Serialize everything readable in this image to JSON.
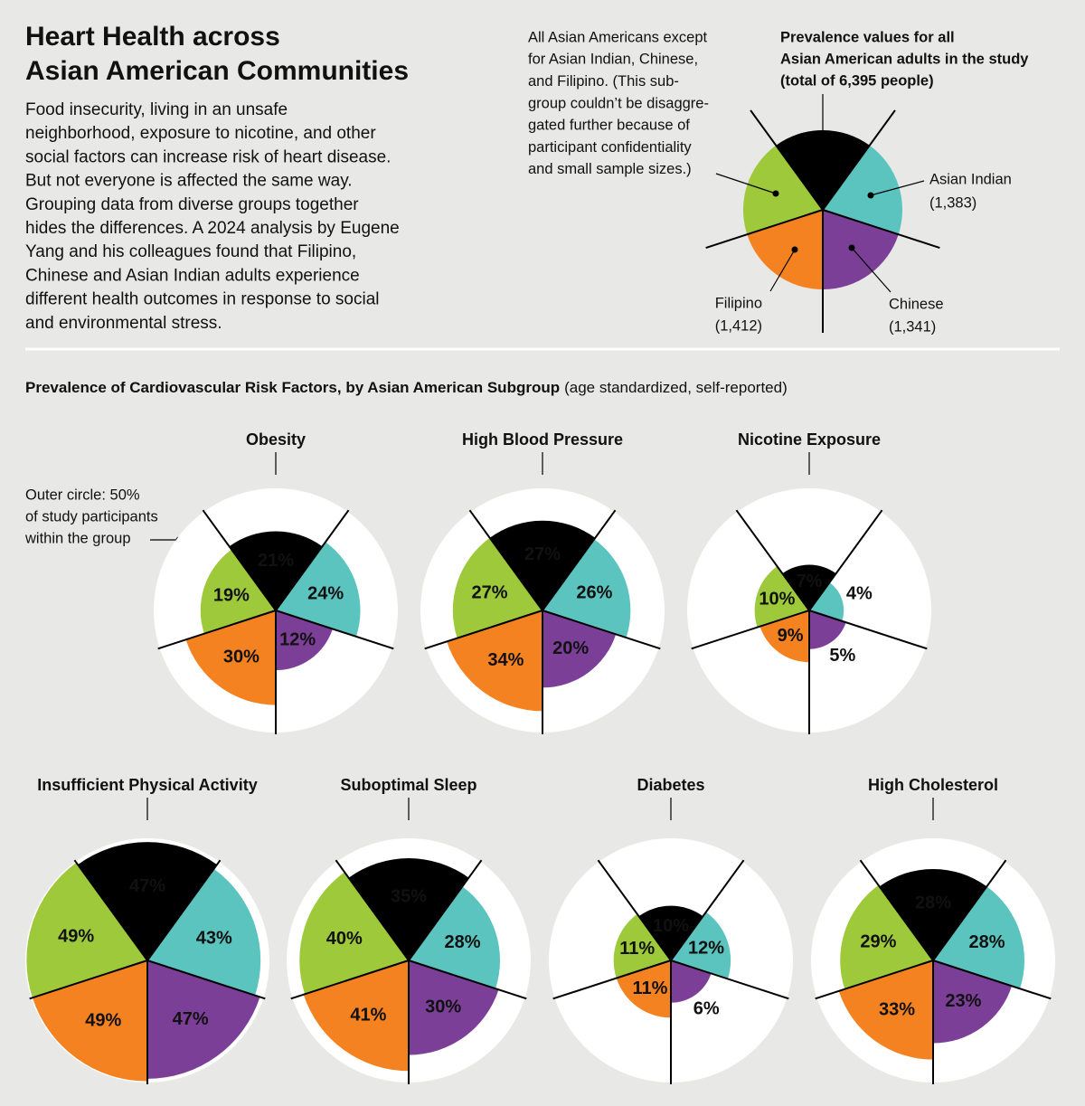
{
  "header": {
    "title": [
      "Heart Health across",
      "Asian American Communities"
    ],
    "body": [
      "Food insecurity, living in an unsafe",
      "neighborhood, exposure to nicotine, and other",
      "social factors can increase risk of heart disease.",
      "But not everyone is affected the same way.",
      "Grouping data from diverse groups together",
      "hides the differences. A 2024 analysis by Eugene",
      "Yang and his colleagues found that Filipino,",
      "Chinese and Asian Indian adults experience",
      "different health outcomes in response to social",
      "and environmental stress."
    ]
  },
  "key": {
    "segments": [
      {
        "color": "#000000",
        "label": [
          "Prevalence values for all",
          "Asian American adults in the study",
          "(total of 6,395 people)"
        ]
      },
      {
        "color": "#5bc4bf",
        "label": [
          "Asian Indian",
          "(1,383)"
        ]
      },
      {
        "color": "#7b3f98",
        "label": [
          "Chinese",
          "(1,341)"
        ]
      },
      {
        "color": "#f58220",
        "label": [
          "Filipino",
          "(1,412)"
        ]
      },
      {
        "color": "#9dc93b",
        "label": [
          "All Asian Americans except",
          "for Asian Indian, Chinese,",
          "and Filipino. (This sub-",
          "group couldn’t be disaggre-",
          "gated further because of",
          "participant confidentiality",
          "and small sample sizes.)"
        ]
      }
    ]
  },
  "section_title": {
    "main": "Prevalence of Cardiovascular Risk Factors, by Asian American Subgroup",
    "note": "(age standardized, self-reported)"
  },
  "outer_circle_note": [
    "Outer circle: 50%",
    "of study participants",
    "within the group"
  ],
  "chart_data": [
    {
      "type": "polar_area",
      "title": "Obesity",
      "rlim": [
        0,
        50
      ],
      "values": [
        21,
        24,
        12,
        30,
        19
      ],
      "value_labels": [
        "21%",
        "24%",
        "12%",
        "30%",
        "19%"
      ]
    },
    {
      "type": "polar_area",
      "title": "High Blood Pressure",
      "rlim": [
        0,
        50
      ],
      "values": [
        27,
        26,
        20,
        34,
        27
      ],
      "value_labels": [
        "27%",
        "26%",
        "20%",
        "34%",
        "27%"
      ]
    },
    {
      "type": "polar_area",
      "title": "Nicotine Exposure",
      "rlim": [
        0,
        50
      ],
      "values": [
        7,
        4,
        5,
        9,
        10
      ],
      "value_labels": [
        "7%",
        "4%",
        "5%",
        "9%",
        "10%"
      ]
    },
    {
      "type": "polar_area",
      "title": "Insufficient Physical Activity",
      "rlim": [
        0,
        50
      ],
      "values": [
        47,
        43,
        47,
        49,
        49
      ],
      "value_labels": [
        "47%",
        "43%",
        "47%",
        "49%",
        "49%"
      ]
    },
    {
      "type": "polar_area",
      "title": "Suboptimal Sleep",
      "rlim": [
        0,
        50
      ],
      "values": [
        35,
        28,
        30,
        41,
        40
      ],
      "value_labels": [
        "35%",
        "28%",
        "30%",
        "41%",
        "40%"
      ]
    },
    {
      "type": "polar_area",
      "title": "Diabetes",
      "rlim": [
        0,
        50
      ],
      "values": [
        10,
        12,
        6,
        11,
        11
      ],
      "value_labels": [
        "10%",
        "12%",
        "6%",
        "11%",
        "11%"
      ]
    },
    {
      "type": "polar_area",
      "title": "High Cholesterol",
      "rlim": [
        0,
        50
      ],
      "values": [
        28,
        28,
        23,
        33,
        29
      ],
      "value_labels": [
        "28%",
        "28%",
        "23%",
        "33%",
        "29%"
      ]
    }
  ]
}
